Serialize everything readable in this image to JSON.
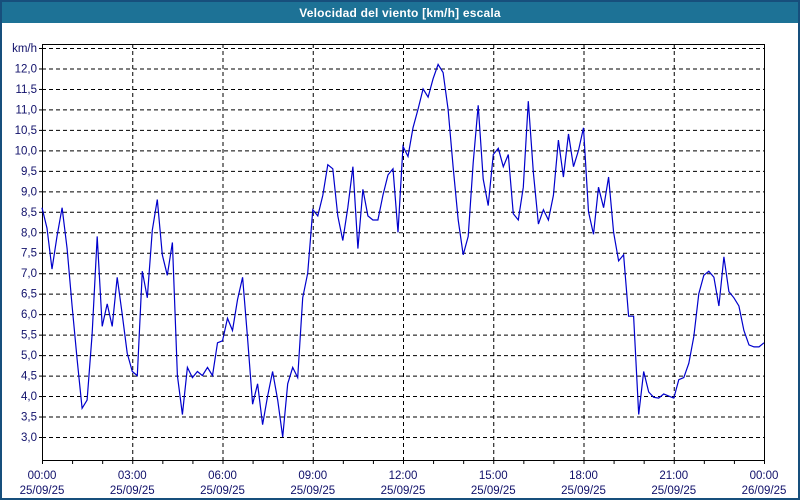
{
  "window": {
    "title": "Velocidad del viento [km/h] escala",
    "title_bar_color": "#1d7296",
    "frame_color": "#174f7c"
  },
  "chart_data": {
    "type": "line",
    "title": "Velocidad del viento [km/h] escala",
    "ylabel_unit": "km/h",
    "line_color": "#0000cc",
    "label_color": "#10106a",
    "grid_on": true,
    "ylim": [
      3.0,
      12.5
    ],
    "y_tick_step": 0.5,
    "y_tick_labels": [
      "12,0",
      "11,5",
      "11,0",
      "10,5",
      "10,0",
      "9,5",
      "9,0",
      "8,5",
      "8,0",
      "7,5",
      "7,0",
      "6,5",
      "6,0",
      "5,5",
      "5,0",
      "4,5",
      "4,0",
      "3,5",
      "3,0"
    ],
    "x_ticks": [
      {
        "time": "00:00",
        "date": "25/09/25"
      },
      {
        "time": "03:00",
        "date": "25/09/25"
      },
      {
        "time": "06:00",
        "date": "25/09/25"
      },
      {
        "time": "09:00",
        "date": "25/09/25"
      },
      {
        "time": "12:00",
        "date": "25/09/25"
      },
      {
        "time": "15:00",
        "date": "25/09/25"
      },
      {
        "time": "18:00",
        "date": "25/09/25"
      },
      {
        "time": "21:00",
        "date": "25/09/25"
      },
      {
        "time": "00:00",
        "date": "26/09/25"
      }
    ],
    "x_minor_tick_minutes": 60,
    "interval_minutes": 10,
    "start_time": "00:00",
    "values": [
      8.6,
      8.1,
      7.1,
      7.9,
      8.6,
      7.6,
      6.2,
      4.9,
      3.7,
      3.9,
      5.5,
      7.9,
      5.7,
      6.25,
      5.7,
      6.9,
      6.0,
      5.05,
      4.6,
      4.5,
      7.05,
      6.4,
      8.05,
      8.8,
      7.45,
      6.95,
      7.75,
      4.5,
      3.55,
      4.7,
      4.45,
      4.6,
      4.5,
      4.7,
      4.5,
      5.3,
      5.35,
      5.9,
      5.6,
      6.35,
      6.9,
      5.4,
      3.8,
      4.3,
      3.3,
      4.0,
      4.6,
      3.9,
      3.0,
      4.3,
      4.7,
      4.45,
      6.4,
      7.0,
      8.55,
      8.4,
      8.9,
      9.65,
      9.55,
      8.4,
      7.8,
      8.6,
      9.6,
      7.6,
      9.05,
      8.4,
      8.3,
      8.3,
      8.9,
      9.4,
      9.55,
      8.0,
      10.1,
      9.85,
      10.55,
      11.0,
      11.5,
      11.3,
      11.75,
      12.1,
      11.9,
      11.0,
      9.6,
      8.3,
      7.45,
      7.9,
      9.7,
      11.1,
      9.3,
      8.65,
      9.9,
      10.05,
      9.6,
      9.9,
      8.45,
      8.3,
      9.1,
      11.2,
      9.45,
      8.2,
      8.55,
      8.3,
      8.9,
      10.25,
      9.35,
      10.4,
      9.6,
      10.0,
      10.55,
      8.5,
      7.95,
      9.1,
      8.6,
      9.35,
      8.0,
      7.3,
      7.45,
      5.95,
      5.95,
      3.55,
      4.6,
      4.1,
      3.97,
      3.95,
      4.05,
      4.0,
      3.95,
      4.4,
      4.45,
      4.8,
      5.45,
      6.5,
      6.95,
      7.05,
      6.9,
      6.2,
      7.4,
      6.55,
      6.4,
      6.2,
      5.6,
      5.25,
      5.2,
      5.2,
      5.3
    ]
  }
}
